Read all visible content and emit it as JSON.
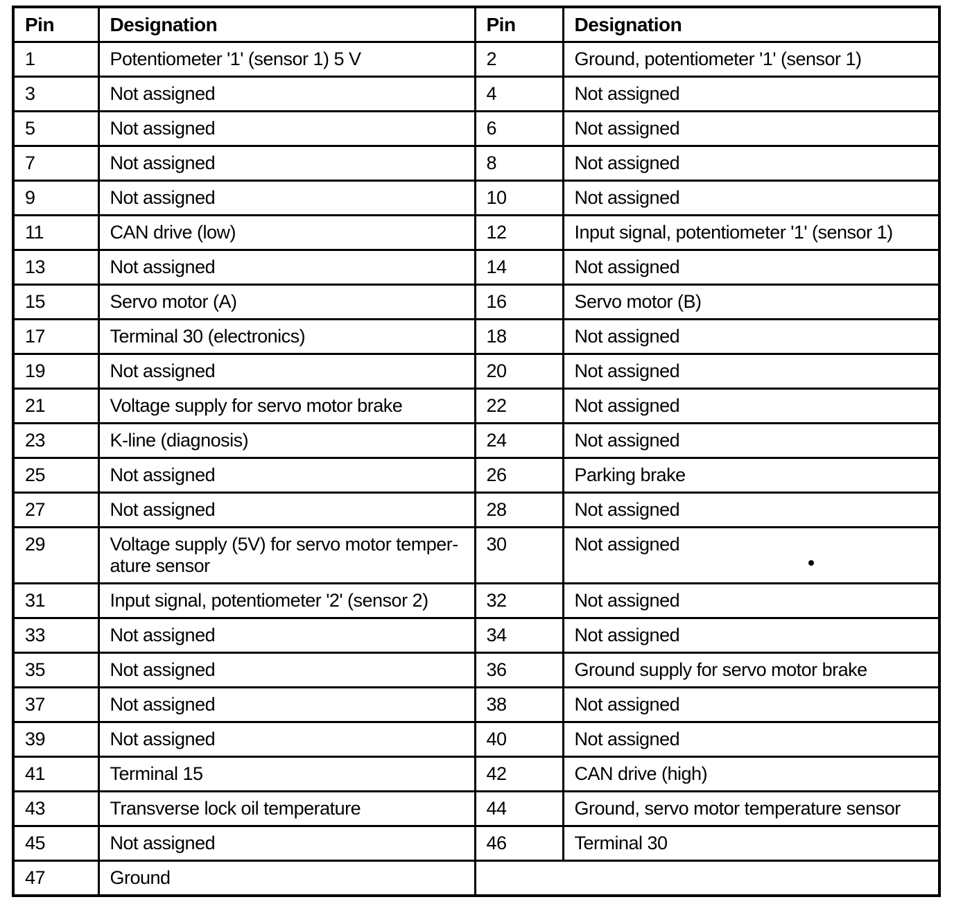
{
  "table": {
    "headers": [
      "Pin",
      "Designation",
      "Pin",
      "Designation"
    ],
    "colors": {
      "border": "#000000",
      "text": "#000000",
      "background": "#ffffff"
    },
    "rows": [
      {
        "pin_left": "1",
        "des_left": "Potentiometer '1' (sensor 1) 5 V",
        "pin_right": "2",
        "des_right": "Ground, potentiometer '1' (sensor 1)"
      },
      {
        "pin_left": "3",
        "des_left": "Not assigned",
        "pin_right": "4",
        "des_right": "Not assigned"
      },
      {
        "pin_left": "5",
        "des_left": "Not assigned",
        "pin_right": "6",
        "des_right": "Not assigned"
      },
      {
        "pin_left": "7",
        "des_left": "Not assigned",
        "pin_right": "8",
        "des_right": "Not assigned"
      },
      {
        "pin_left": "9",
        "des_left": "Not assigned",
        "pin_right": "10",
        "des_right": "Not assigned"
      },
      {
        "pin_left": "11",
        "des_left": "CAN drive (low)",
        "pin_right": "12",
        "des_right": "Input signal, potentiometer '1' (sensor 1)"
      },
      {
        "pin_left": "13",
        "des_left": "Not assigned",
        "pin_right": "14",
        "des_right": "Not assigned"
      },
      {
        "pin_left": "15",
        "des_left": "Servo motor (A)",
        "pin_right": "16",
        "des_right": "Servo motor (B)"
      },
      {
        "pin_left": "17",
        "des_left": "Terminal 30 (electronics)",
        "pin_right": "18",
        "des_right": "Not assigned"
      },
      {
        "pin_left": "19",
        "des_left": "Not assigned",
        "pin_right": "20",
        "des_right": "Not assigned"
      },
      {
        "pin_left": "21",
        "des_left": "Voltage supply for servo motor brake",
        "pin_right": "22",
        "des_right": "Not assigned"
      },
      {
        "pin_left": "23",
        "des_left": "K-line (diagnosis)",
        "pin_right": "24",
        "des_right": "Not assigned"
      },
      {
        "pin_left": "25",
        "des_left": "Not assigned",
        "pin_right": "26",
        "des_right": "Parking brake"
      },
      {
        "pin_left": "27",
        "des_left": "Not assigned",
        "pin_right": "28",
        "des_right": "Not assigned"
      },
      {
        "pin_left": "29",
        "des_left": "Voltage supply (5V) for servo motor temper-\nature sensor",
        "pin_right": "30",
        "des_right": "Not assigned",
        "dot_artifact": true
      },
      {
        "pin_left": "31",
        "des_left": "Input signal, potentiometer '2' (sensor 2)",
        "pin_right": "32",
        "des_right": "Not assigned"
      },
      {
        "pin_left": "33",
        "des_left": "Not assigned",
        "pin_right": "34",
        "des_right": "Not assigned"
      },
      {
        "pin_left": "35",
        "des_left": "Not assigned",
        "pin_right": "36",
        "des_right": "Ground supply for servo motor brake"
      },
      {
        "pin_left": "37",
        "des_left": "Not assigned",
        "pin_right": "38",
        "des_right": "Not assigned"
      },
      {
        "pin_left": "39",
        "des_left": "Not assigned",
        "pin_right": "40",
        "des_right": "Not assigned"
      },
      {
        "pin_left": "41",
        "des_left": "Terminal 15",
        "pin_right": "42",
        "des_right": "CAN drive (high)"
      },
      {
        "pin_left": "43",
        "des_left": "Transverse lock oil temperature",
        "pin_right": "44",
        "des_right": "Ground, servo motor temperature sensor"
      },
      {
        "pin_left": "45",
        "des_left": "Not assigned",
        "pin_right": "46",
        "des_right": "Terminal 30"
      },
      {
        "pin_left": "47",
        "des_left": "Ground",
        "merged_right": true
      }
    ]
  }
}
